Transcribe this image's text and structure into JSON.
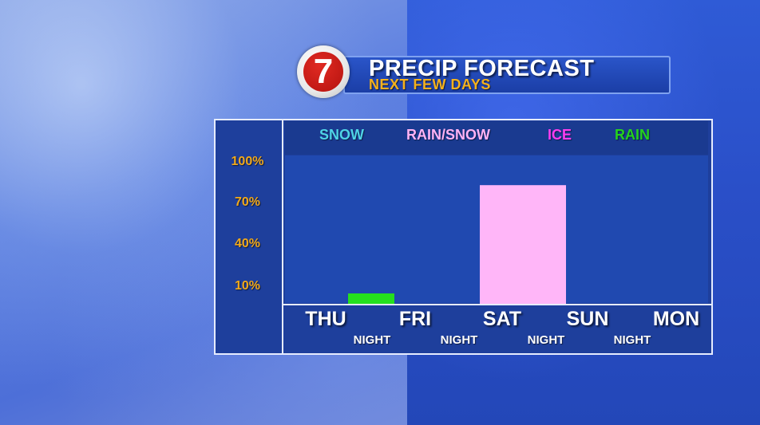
{
  "header": {
    "title": "PRECIP FORECAST",
    "subtitle": "NEXT FEW DAYS",
    "logo_text": "7"
  },
  "legend": [
    {
      "label": "SNOW",
      "color": "#4fd3e6"
    },
    {
      "label": "RAIN/SNOW",
      "color": "#ffb3f5"
    },
    {
      "label": "ICE",
      "color": "#ff3df0"
    },
    {
      "label": "RAIN",
      "color": "#25d21e"
    }
  ],
  "chart_data": {
    "type": "bar",
    "title": "PRECIP FORECAST",
    "subtitle": "NEXT FEW DAYS",
    "categories": [
      "THU NIGHT",
      "FRI NIGHT",
      "SAT NIGHT",
      "SUN NIGHT"
    ],
    "day_labels": [
      "THU",
      "FRI",
      "SAT",
      "SUN",
      "MON"
    ],
    "night_label": "NIGHT",
    "y_ticks": [
      "100%",
      "70%",
      "40%",
      "10%"
    ],
    "ylim": [
      0,
      100
    ],
    "bars": [
      {
        "category": "THU NIGHT",
        "value": 7,
        "type": "RAIN",
        "color": "#25e01e"
      },
      {
        "category": "SAT NIGHT",
        "value": 80,
        "type": "RAIN/SNOW",
        "color": "#ffb6f8"
      }
    ],
    "grid": false,
    "legend_position": "top"
  }
}
